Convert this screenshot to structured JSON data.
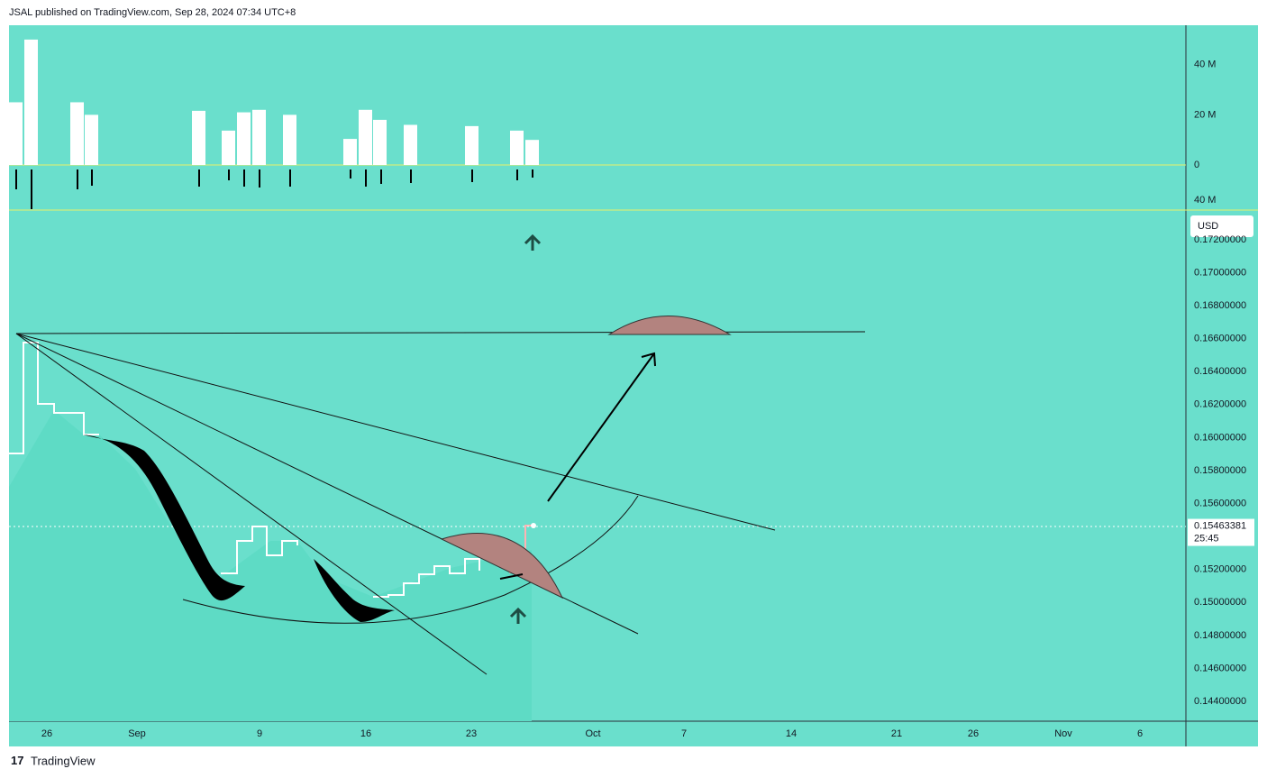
{
  "header": {
    "text": "JSAL published on TradingView.com, Sep 28, 2024 07:34 UTC+8"
  },
  "volume": {
    "values": [
      25000000,
      50000000,
      25000000,
      20000000,
      21600000,
      13700000,
      21000000,
      22000000,
      20000000,
      10400000,
      22000000,
      18000000,
      16000000,
      15500000,
      13700000,
      10000000
    ],
    "ylim": [
      0,
      55000000
    ],
    "yticks": [
      {
        "value": 40000000,
        "label": "40 M"
      },
      {
        "value": 20000000,
        "label": "20 M"
      },
      0
    ],
    "lower_label": "40 M"
  },
  "price_axis": {
    "currency": "USD",
    "ylim": [
      0.1428,
      0.1738
    ],
    "yticks": [
      {
        "value": 0.172,
        "label": "0.17200000"
      },
      {
        "value": 0.17,
        "label": "0.17000000"
      },
      {
        "value": 0.168,
        "label": "0.16800000"
      },
      {
        "value": 0.166,
        "label": "0.16600000"
      },
      {
        "value": 0.164,
        "label": "0.16400000"
      },
      {
        "value": 0.162,
        "label": "0.16200000"
      },
      {
        "value": 0.16,
        "label": "0.16000000"
      },
      {
        "value": 0.158,
        "label": "0.15800000"
      },
      {
        "value": 0.156,
        "label": "0.15600000"
      },
      {
        "value": 0.152,
        "label": "0.15200000"
      },
      {
        "value": 0.15,
        "label": "0.15000000"
      },
      {
        "value": 0.148,
        "label": "0.14800000"
      },
      {
        "value": 0.146,
        "label": "0.14600000"
      },
      {
        "value": 0.144,
        "label": "0.14400000"
      }
    ],
    "last_price": {
      "value": 0.15463381,
      "label": "0.15463381"
    },
    "countdown": "25:45"
  },
  "x_axis": {
    "labels": [
      "26",
      "Sep",
      "9",
      "16",
      "23",
      "Oct",
      "7",
      "14",
      "21",
      "26",
      "Nov",
      "6"
    ]
  },
  "footer": {
    "brand": "TradingView"
  }
}
